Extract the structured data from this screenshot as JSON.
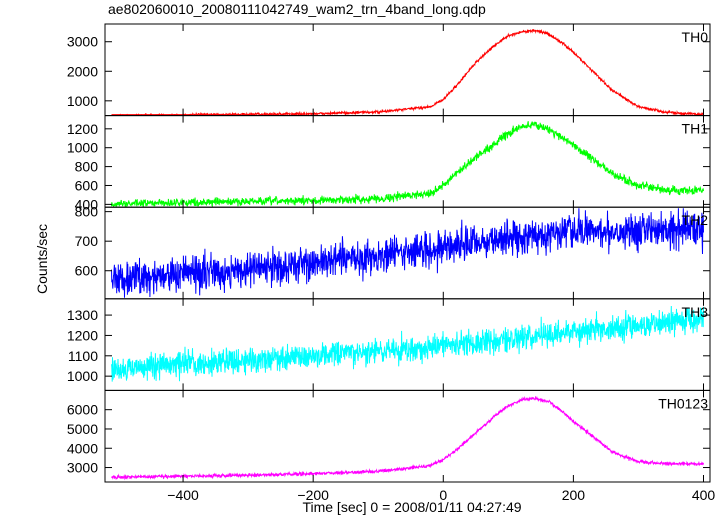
{
  "title": "ae802060010_20080111042749_wam2_trn_4band_long.qdp",
  "ylabel": "Counts/sec",
  "xlabel": "Time [sec] 0 = 2008/01/11 04:27:49",
  "xlim": [
    -520,
    410
  ],
  "x_ticks": [
    -400,
    -200,
    0,
    200,
    400
  ],
  "chart_data": [
    {
      "type": "line",
      "name": "TH0",
      "color": "#ff0000",
      "ylim": [
        500,
        3600
      ],
      "y_ticks": [
        1000,
        2000,
        3000
      ],
      "noise": 30,
      "x": [
        -510,
        -400,
        -300,
        -200,
        -100,
        -20,
        0,
        20,
        50,
        80,
        100,
        120,
        140,
        160,
        180,
        200,
        230,
        260,
        300,
        340,
        380,
        400
      ],
      "y": [
        500,
        520,
        540,
        560,
        620,
        800,
        1050,
        1500,
        2300,
        2900,
        3200,
        3330,
        3380,
        3280,
        3000,
        2650,
        2000,
        1350,
        800,
        620,
        560,
        530
      ]
    },
    {
      "type": "line",
      "name": "TH1",
      "color": "#00ff00",
      "ylim": [
        370,
        1340
      ],
      "y_ticks": [
        400,
        600,
        800,
        1000,
        1200
      ],
      "noise": 30,
      "x": [
        -510,
        -400,
        -300,
        -200,
        -100,
        -20,
        0,
        20,
        50,
        80,
        100,
        120,
        140,
        160,
        180,
        200,
        230,
        260,
        300,
        340,
        380,
        400
      ],
      "y": [
        400,
        420,
        430,
        440,
        460,
        520,
        600,
        720,
        900,
        1050,
        1150,
        1220,
        1250,
        1200,
        1120,
        1030,
        880,
        720,
        600,
        550,
        540,
        560
      ]
    },
    {
      "type": "line",
      "name": "TH2",
      "color": "#0000ff",
      "ylim": [
        505,
        815
      ],
      "y_ticks": [
        600,
        700,
        800
      ],
      "noise": 42,
      "x": [
        -510,
        -400,
        -300,
        -200,
        -100,
        0,
        100,
        200,
        300,
        400
      ],
      "y": [
        570,
        590,
        605,
        625,
        650,
        680,
        710,
        730,
        740,
        745
      ]
    },
    {
      "type": "line",
      "name": "TH3",
      "color": "#00ffff",
      "ylim": [
        930,
        1380
      ],
      "y_ticks": [
        1000,
        1100,
        1200,
        1300
      ],
      "noise": 45,
      "x": [
        -510,
        -400,
        -300,
        -200,
        -100,
        0,
        100,
        200,
        300,
        400
      ],
      "y": [
        1030,
        1060,
        1080,
        1100,
        1120,
        1150,
        1180,
        1220,
        1250,
        1290
      ]
    },
    {
      "type": "line",
      "name": "TH0123",
      "color": "#ff00ff",
      "ylim": [
        2250,
        7000
      ],
      "y_ticks": [
        3000,
        4000,
        5000,
        6000
      ],
      "noise": 60,
      "x": [
        -510,
        -400,
        -300,
        -200,
        -100,
        -20,
        0,
        20,
        50,
        80,
        100,
        120,
        140,
        160,
        180,
        200,
        230,
        260,
        300,
        340,
        380,
        400
      ],
      "y": [
        2500,
        2550,
        2600,
        2680,
        2800,
        3100,
        3400,
        3900,
        4800,
        5700,
        6200,
        6500,
        6600,
        6450,
        6000,
        5400,
        4600,
        3800,
        3300,
        3200,
        3200,
        3200
      ]
    }
  ]
}
